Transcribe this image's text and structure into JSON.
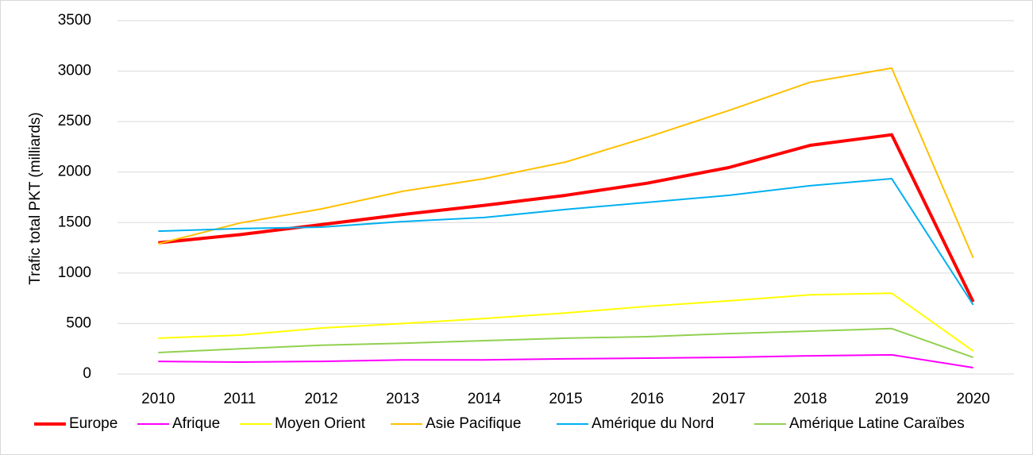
{
  "chart_data": {
    "type": "line",
    "y_label": "Trafic total PKT (milliards)",
    "categories": [
      "2010",
      "2011",
      "2012",
      "2013",
      "2014",
      "2015",
      "2016",
      "2017",
      "2018",
      "2019",
      "2020"
    ],
    "ylim": [
      0,
      3500
    ],
    "yticks": [
      0,
      500,
      1000,
      1500,
      2000,
      2500,
      3000,
      3500
    ],
    "grid": true,
    "legend": "bottom",
    "series": [
      {
        "name": "Europe",
        "color": "#ff0000",
        "values": [
          1300,
          1380,
          1480,
          1580,
          1670,
          1770,
          1890,
          2045,
          2265,
          2370,
          715
        ]
      },
      {
        "name": "Afrique",
        "color": "#ff00ff",
        "values": [
          125,
          118,
          125,
          140,
          140,
          150,
          157,
          165,
          180,
          190,
          63
        ]
      },
      {
        "name": "Moyen Orient",
        "color": "#ffff00",
        "values": [
          355,
          385,
          455,
          500,
          550,
          605,
          670,
          725,
          785,
          800,
          228
        ]
      },
      {
        "name": "Asie Pacifique",
        "color": "#ffc000",
        "values": [
          1290,
          1495,
          1635,
          1810,
          1935,
          2100,
          2345,
          2610,
          2890,
          3030,
          1150
        ]
      },
      {
        "name": "Amérique du Nord",
        "color": "#00b0f0",
        "values": [
          1415,
          1440,
          1455,
          1510,
          1550,
          1630,
          1700,
          1770,
          1865,
          1935,
          685
        ]
      },
      {
        "name": "Amérique Latine Caraïbes",
        "color": "#92d050",
        "values": [
          212,
          250,
          285,
          305,
          330,
          355,
          370,
          400,
          425,
          450,
          165
        ]
      }
    ]
  }
}
